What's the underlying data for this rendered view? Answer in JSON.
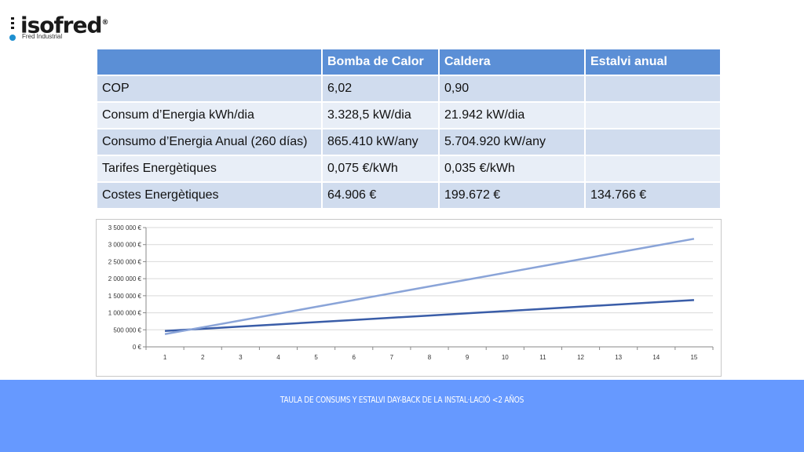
{
  "logo": {
    "name": "isofred",
    "reg": "®",
    "subtitle": "Fred Industrial"
  },
  "table": {
    "headers": [
      "",
      "Bomba de Calor",
      "Caldera",
      "Estalvi anual"
    ],
    "rows": [
      [
        "COP",
        "6,02",
        "0,90",
        ""
      ],
      [
        "Consum  d’Energia kWh/dia",
        "3.328,5 kW/dia",
        "21.942 kW/dia",
        ""
      ],
      [
        "Consumo d’Energia Anual (260 días)",
        "865.410 kW/any",
        "5.704.920 kW/any",
        ""
      ],
      [
        "Tarifes Energètiques",
        "0,075 €/kWh",
        "0,035 €/kWh",
        ""
      ],
      [
        "Costes Energètiques",
        "64.906 €",
        "199.672 €",
        "134.766  €"
      ]
    ]
  },
  "chart_data": {
    "type": "line",
    "title": "",
    "xlabel": "",
    "ylabel": "",
    "x": [
      1,
      2,
      3,
      4,
      5,
      6,
      7,
      8,
      9,
      10,
      11,
      12,
      13,
      14,
      15
    ],
    "ylim": [
      0,
      3500000
    ],
    "yticks": [
      0,
      500000,
      1000000,
      1500000,
      2000000,
      2500000,
      3000000,
      3500000
    ],
    "ytick_labels": [
      "0 €",
      "500 000 €",
      "1 000 000 €",
      "1 500 000 €",
      "2 000 000 €",
      "2 500 000 €",
      "3 000 000 €",
      "3 500 000 €"
    ],
    "grid": true,
    "legend": "none",
    "series": [
      {
        "values": [
          464906,
          529812,
          594718,
          659624,
          724530,
          789436,
          854342,
          919248,
          984154,
          1049060,
          1113966,
          1178872,
          1243778,
          1308684,
          1373590
        ],
        "color": "#3a5da8"
      },
      {
        "values": [
          374766,
          574438,
          774110,
          973782,
          1173454,
          1373126,
          1572798,
          1772470,
          1972142,
          2171814,
          2371486,
          2571158,
          2770830,
          2970502,
          3170174
        ],
        "color": "#8aa4d8"
      }
    ]
  },
  "footer": {
    "text": "TAULA DE CONSUMS Y ESTALVI DAY-BACK DE LA INSTAL·LACIÓ  <2 AÑOS"
  }
}
